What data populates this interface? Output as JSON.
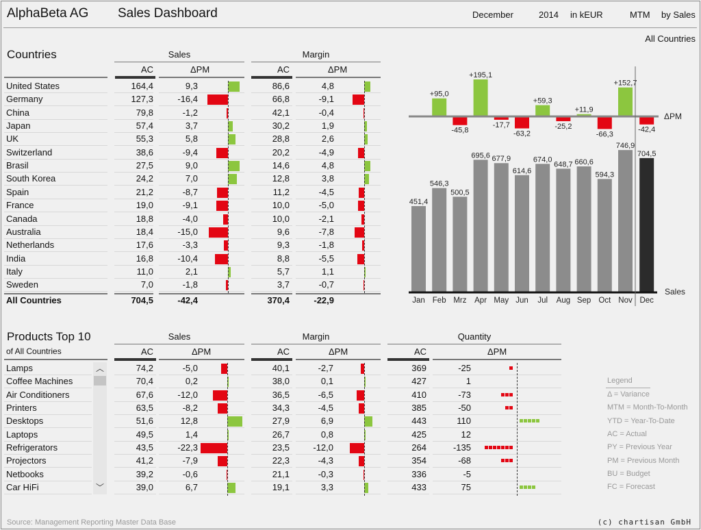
{
  "header": {
    "company": "AlphaBeta AG",
    "title": "Sales Dashboard",
    "month": "December",
    "year": "2014",
    "unit": "in kEUR",
    "mode": "MTM",
    "view": "by Sales",
    "scope": "All Countries"
  },
  "colors": {
    "positive": "#8cc63f",
    "negative": "#e30613",
    "actual": "#8c8c8c",
    "current": "#2b2b2b",
    "background": "#f0f0f0"
  },
  "countries": {
    "title": "Countries",
    "group_sales": "Sales",
    "group_margin": "Margin",
    "col_ac": "AC",
    "col_dpm": "ΔPM",
    "rows": [
      {
        "name": "United States",
        "sales_ac": 164.4,
        "sales_dpm": 9.3,
        "margin_ac": 86.6,
        "margin_dpm": 4.8
      },
      {
        "name": "Germany",
        "sales_ac": 127.3,
        "sales_dpm": -16.4,
        "margin_ac": 66.8,
        "margin_dpm": -9.1
      },
      {
        "name": "China",
        "sales_ac": 79.8,
        "sales_dpm": -1.2,
        "margin_ac": 42.1,
        "margin_dpm": -0.4
      },
      {
        "name": "Japan",
        "sales_ac": 57.4,
        "sales_dpm": 3.7,
        "margin_ac": 30.2,
        "margin_dpm": 1.9
      },
      {
        "name": "UK",
        "sales_ac": 55.3,
        "sales_dpm": 5.8,
        "margin_ac": 28.8,
        "margin_dpm": 2.6
      },
      {
        "name": "Switzerland",
        "sales_ac": 38.6,
        "sales_dpm": -9.4,
        "margin_ac": 20.2,
        "margin_dpm": -4.9
      },
      {
        "name": "Brasil",
        "sales_ac": 27.5,
        "sales_dpm": 9.0,
        "margin_ac": 14.6,
        "margin_dpm": 4.8
      },
      {
        "name": "South Korea",
        "sales_ac": 24.2,
        "sales_dpm": 7.0,
        "margin_ac": 12.8,
        "margin_dpm": 3.8
      },
      {
        "name": "Spain",
        "sales_ac": 21.2,
        "sales_dpm": -8.7,
        "margin_ac": 11.2,
        "margin_dpm": -4.5
      },
      {
        "name": "France",
        "sales_ac": 19.0,
        "sales_dpm": -9.1,
        "margin_ac": 10.0,
        "margin_dpm": -5.0
      },
      {
        "name": "Canada",
        "sales_ac": 18.8,
        "sales_dpm": -4.0,
        "margin_ac": 10.0,
        "margin_dpm": -2.1
      },
      {
        "name": "Australia",
        "sales_ac": 18.4,
        "sales_dpm": -15.0,
        "margin_ac": 9.6,
        "margin_dpm": -7.8
      },
      {
        "name": "Netherlands",
        "sales_ac": 17.6,
        "sales_dpm": -3.3,
        "margin_ac": 9.3,
        "margin_dpm": -1.8
      },
      {
        "name": "India",
        "sales_ac": 16.8,
        "sales_dpm": -10.4,
        "margin_ac": 8.8,
        "margin_dpm": -5.5
      },
      {
        "name": "Italy",
        "sales_ac": 11.0,
        "sales_dpm": 2.1,
        "margin_ac": 5.7,
        "margin_dpm": 1.1
      },
      {
        "name": "Sweden",
        "sales_ac": 7.0,
        "sales_dpm": -1.8,
        "margin_ac": 3.7,
        "margin_dpm": -0.7
      }
    ],
    "total": {
      "name": "All Countries",
      "sales_ac": 704.5,
      "sales_dpm": -42.4,
      "margin_ac": 370.4,
      "margin_dpm": -22.9
    }
  },
  "products": {
    "title": "Products Top 10",
    "subtitle": "of All Countries",
    "group_sales": "Sales",
    "group_margin": "Margin",
    "group_quantity": "Quantity",
    "col_ac": "AC",
    "col_dpm": "ΔPM",
    "rows": [
      {
        "name": "Lamps",
        "sales_ac": 74.2,
        "sales_dpm": -5.0,
        "margin_ac": 40.1,
        "margin_dpm": -2.7,
        "qty_ac": 369,
        "qty_dpm": -25
      },
      {
        "name": "Coffee Machines",
        "sales_ac": 70.4,
        "sales_dpm": 0.2,
        "margin_ac": 38.0,
        "margin_dpm": 0.1,
        "qty_ac": 427,
        "qty_dpm": 1
      },
      {
        "name": "Air Conditioners",
        "sales_ac": 67.6,
        "sales_dpm": -12.0,
        "margin_ac": 36.5,
        "margin_dpm": -6.5,
        "qty_ac": 410,
        "qty_dpm": -73
      },
      {
        "name": "Printers",
        "sales_ac": 63.5,
        "sales_dpm": -8.2,
        "margin_ac": 34.3,
        "margin_dpm": -4.5,
        "qty_ac": 385,
        "qty_dpm": -50
      },
      {
        "name": "Desktops",
        "sales_ac": 51.6,
        "sales_dpm": 12.8,
        "margin_ac": 27.9,
        "margin_dpm": 6.9,
        "qty_ac": 443,
        "qty_dpm": 110
      },
      {
        "name": "Laptops",
        "sales_ac": 49.5,
        "sales_dpm": 1.4,
        "margin_ac": 26.7,
        "margin_dpm": 0.8,
        "qty_ac": 425,
        "qty_dpm": 12
      },
      {
        "name": "Refrigerators",
        "sales_ac": 43.5,
        "sales_dpm": -22.3,
        "margin_ac": 23.5,
        "margin_dpm": -12.0,
        "qty_ac": 264,
        "qty_dpm": -135
      },
      {
        "name": "Projectors",
        "sales_ac": 41.2,
        "sales_dpm": -7.9,
        "margin_ac": 22.3,
        "margin_dpm": -4.3,
        "qty_ac": 354,
        "qty_dpm": -68
      },
      {
        "name": "Netbooks",
        "sales_ac": 39.2,
        "sales_dpm": -0.6,
        "margin_ac": 21.1,
        "margin_dpm": -0.3,
        "qty_ac": 336,
        "qty_dpm": -5
      },
      {
        "name": "Car HiFi",
        "sales_ac": 39.0,
        "sales_dpm": 6.7,
        "margin_ac": 19.1,
        "margin_dpm": 3.3,
        "qty_ac": 433,
        "qty_dpm": 75
      }
    ]
  },
  "chart_data": {
    "type": "bar",
    "categories": [
      "Jan",
      "Feb",
      "Mrz",
      "Apr",
      "May",
      "Jun",
      "Jul",
      "Aug",
      "Sep",
      "Oct",
      "Nov",
      "Dec"
    ],
    "series": [
      {
        "name": "Sales",
        "values": [
          451.4,
          546.3,
          500.5,
          695.6,
          677.9,
          614.6,
          674.0,
          648.7,
          660.6,
          594.3,
          746.9,
          704.5
        ]
      },
      {
        "name": "ΔPM",
        "values": [
          null,
          95.0,
          -45.8,
          195.1,
          -17.7,
          -63.2,
          59.3,
          -25.2,
          11.9,
          -66.3,
          152.7,
          -42.4
        ]
      }
    ],
    "highlight_category": "Dec",
    "grid": false
  },
  "legend": {
    "title": "Legend",
    "items": [
      "Δ = Variance",
      "MTM = Month-To-Month",
      "YTD = Year-To-Date",
      "AC = Actual",
      "PY = Previous Year",
      "PM = Previous Month",
      "BU = Budget",
      "FC = Forecast"
    ]
  },
  "footer": {
    "source": "Source: Management Reporting Master Data Base",
    "copyright": "(c) chartisan GmbH"
  }
}
